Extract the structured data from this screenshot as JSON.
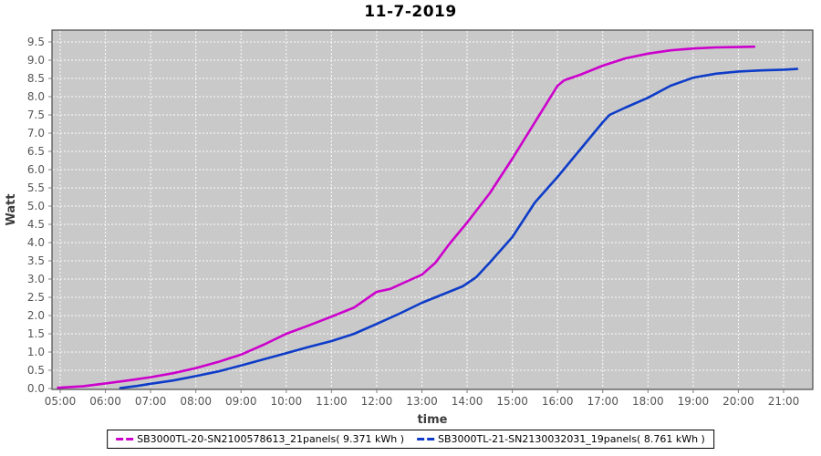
{
  "title": "11-7-2019",
  "axis": {
    "x_label": "time",
    "y_label": "Watt"
  },
  "legend": {
    "entries": [
      {
        "label": "SB3000TL-20-SN2100578613_21panels( 9.371 kWh )",
        "color": "#cc00cc"
      },
      {
        "label": "SB3000TL-21-SN2130032031_19panels( 8.761 kWh )",
        "color": "#0e3cc8"
      }
    ]
  },
  "chart_data": {
    "type": "line",
    "title": "11-7-2019",
    "xlabel": "time",
    "ylabel": "Watt",
    "xlim_hours": [
      5,
      21.6
    ],
    "ylim": [
      0,
      9.75
    ],
    "grid": true,
    "legend_position": "bottom",
    "plot_bg_color": "#c9c9c9",
    "grid_color": "#ffffff",
    "tick_label_color": "#555555",
    "axis_label_color": "#3d3d3d",
    "x_tick_hours": [
      5,
      6,
      7,
      8,
      9,
      10,
      11,
      12,
      13,
      14,
      15,
      16,
      17,
      18,
      19,
      20,
      21
    ],
    "x_tick_labels": [
      "05:00",
      "06:00",
      "07:00",
      "08:00",
      "09:00",
      "10:00",
      "11:00",
      "12:00",
      "13:00",
      "14:00",
      "15:00",
      "16:00",
      "17:00",
      "18:00",
      "19:00",
      "20:00",
      "21:00"
    ],
    "y_tick_values": [
      0,
      0.5,
      1,
      1.5,
      2,
      2.5,
      3,
      3.5,
      4,
      4.5,
      5,
      5.5,
      6,
      6.5,
      7,
      7.5,
      8,
      8.5,
      9,
      9.5
    ],
    "y_tick_labels": [
      "0.0",
      "0.5",
      "1.0",
      "1.5",
      "2.0",
      "2.5",
      "3.0",
      "3.5",
      "4.0",
      "4.5",
      "5.0",
      "5.5",
      "6.0",
      "6.5",
      "7.0",
      "7.5",
      "8.0",
      "8.5",
      "9.0",
      "9.5"
    ],
    "series": [
      {
        "name": "SB3000TL-20-SN2100578613_21panels( 9.371 kWh )",
        "color": "#cc00cc",
        "total_kwh": 9.371,
        "x": [
          4.95,
          5.5,
          6.0,
          6.5,
          7.0,
          7.5,
          8.0,
          8.5,
          9.0,
          9.5,
          10.0,
          10.5,
          11.0,
          11.5,
          12.0,
          12.3,
          12.6,
          13.0,
          13.3,
          13.6,
          14.0,
          14.5,
          15.0,
          15.5,
          16.0,
          16.15,
          16.5,
          17.0,
          17.5,
          18.0,
          18.5,
          19.0,
          19.5,
          20.0,
          20.35
        ],
        "y": [
          0.02,
          0.06,
          0.14,
          0.22,
          0.31,
          0.42,
          0.56,
          0.73,
          0.93,
          1.2,
          1.5,
          1.73,
          1.97,
          2.22,
          2.65,
          2.73,
          2.9,
          3.12,
          3.45,
          3.95,
          4.55,
          5.35,
          6.3,
          7.3,
          8.3,
          8.45,
          8.6,
          8.85,
          9.05,
          9.18,
          9.27,
          9.32,
          9.35,
          9.36,
          9.371
        ]
      },
      {
        "name": "SB3000TL-21-SN2130032031_19panels( 8.761 kWh )",
        "color": "#0e3cc8",
        "total_kwh": 8.761,
        "x": [
          6.33,
          6.7,
          7.0,
          7.5,
          8.0,
          8.5,
          9.0,
          9.5,
          10.0,
          10.5,
          11.0,
          11.5,
          12.0,
          12.5,
          13.0,
          13.5,
          13.9,
          14.2,
          14.5,
          15.0,
          15.5,
          16.0,
          16.5,
          17.0,
          17.15,
          17.5,
          18.0,
          18.5,
          19.0,
          19.5,
          20.0,
          20.5,
          21.0,
          21.3
        ],
        "y": [
          0.01,
          0.07,
          0.13,
          0.22,
          0.34,
          0.47,
          0.63,
          0.8,
          0.97,
          1.14,
          1.3,
          1.5,
          1.77,
          2.05,
          2.35,
          2.6,
          2.8,
          3.05,
          3.45,
          4.15,
          5.1,
          5.8,
          6.55,
          7.3,
          7.5,
          7.7,
          7.97,
          8.3,
          8.52,
          8.63,
          8.69,
          8.72,
          8.74,
          8.761
        ]
      }
    ]
  }
}
